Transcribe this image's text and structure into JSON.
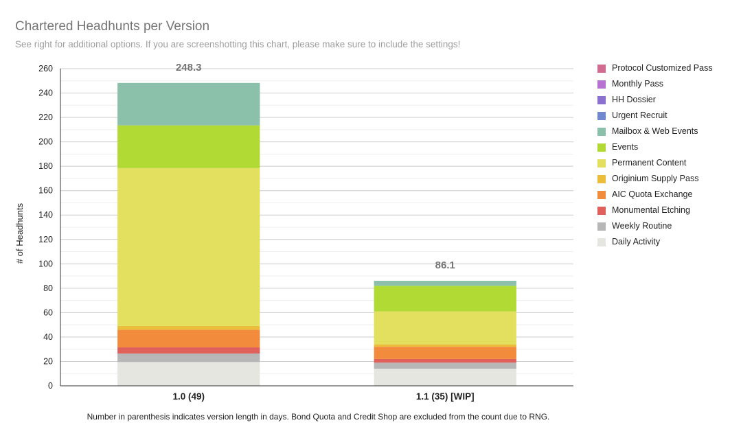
{
  "title": "Chartered Headhunts per Version",
  "subtitle": "See right for additional options. If you are screenshotting this chart, please make sure to include the settings!",
  "footnote": "Number in parenthesis indicates version length in days. Bond Quota and Credit Shop are excluded from the count due to RNG.",
  "chart_data": {
    "type": "bar",
    "stacked": true,
    "title": "Chartered Headhunts per Version",
    "xlabel": "",
    "ylabel": "# of Headhunts",
    "ylim": [
      0,
      260
    ],
    "yticks": [
      0,
      20,
      40,
      60,
      80,
      100,
      120,
      140,
      160,
      180,
      200,
      220,
      240,
      260
    ],
    "grid": true,
    "legend_position": "right",
    "categories": [
      "1.0 (49)",
      "1.1 (35) [WIP]"
    ],
    "totals": [
      "248.3",
      "86.1"
    ],
    "series": [
      {
        "name": "Daily Activity",
        "color": "#e6e6e1",
        "values": [
          19.5,
          14
        ]
      },
      {
        "name": "Weekly Routine",
        "color": "#b7b7b7",
        "values": [
          7,
          5
        ]
      },
      {
        "name": "Monumental Etching",
        "color": "#e0605c",
        "values": [
          5,
          3
        ]
      },
      {
        "name": "AIC Quota Exchange",
        "color": "#f28c3c",
        "values": [
          14.5,
          10
        ]
      },
      {
        "name": "Originium Supply Pass",
        "color": "#ebbd3a",
        "values": [
          3,
          2
        ]
      },
      {
        "name": "Permanent Content",
        "color": "#e3e05f",
        "values": [
          129.5,
          27
        ]
      },
      {
        "name": "Events",
        "color": "#b2da35",
        "values": [
          35,
          21
        ]
      },
      {
        "name": "Mailbox & Web Events",
        "color": "#8bc1aa",
        "values": [
          34.8,
          4.1
        ]
      },
      {
        "name": "Urgent Recruit",
        "color": "#6f88cf",
        "values": [
          0,
          0
        ]
      },
      {
        "name": "HH Dossier",
        "color": "#8b70cf",
        "values": [
          0,
          0
        ]
      },
      {
        "name": "Monthly Pass",
        "color": "#b572d0",
        "values": [
          0,
          0
        ]
      },
      {
        "name": "Protocol Customized Pass",
        "color": "#d16b8f",
        "values": [
          0,
          0
        ]
      }
    ]
  }
}
